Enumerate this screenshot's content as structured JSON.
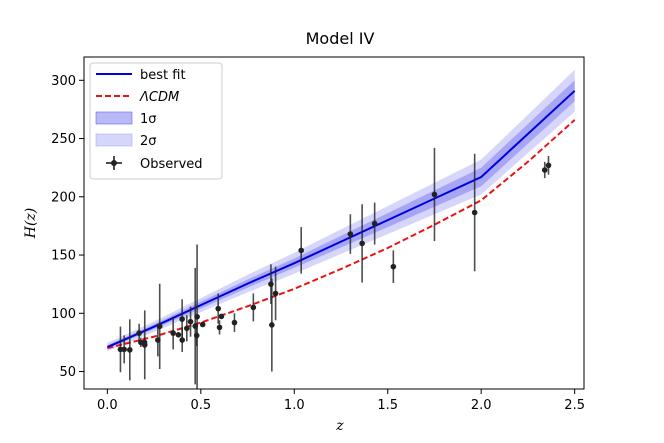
{
  "chart_data": {
    "type": "line",
    "title": "Model IV",
    "xlabel": "z",
    "ylabel": "H(z)",
    "xlim": [
      -0.125,
      2.55
    ],
    "ylim": [
      35,
      320
    ],
    "xticks": [
      0.0,
      0.5,
      1.0,
      1.5,
      2.0,
      2.5
    ],
    "xtick_labels": [
      "0.0",
      "0.5",
      "1.0",
      "1.5",
      "2.0",
      "2.5"
    ],
    "yticks": [
      50,
      100,
      150,
      200,
      250,
      300
    ],
    "ytick_labels": [
      "50",
      "100",
      "150",
      "200",
      "250",
      "300"
    ],
    "legend_position": "top-left",
    "legend": {
      "best_fit": "best fit",
      "lcdm": "ΛCDM",
      "one_sigma": "1σ",
      "two_sigma": "2σ",
      "observed": "Observed"
    },
    "colors": {
      "best_fit": "#0000dd",
      "lcdm": "#ee1111",
      "band_1sigma": "#8080f0",
      "band_2sigma": "#c8c8fa",
      "observed": "#222222"
    },
    "series": [
      {
        "name": "best fit",
        "x": [
          0.0,
          0.25,
          0.5,
          0.75,
          1.0,
          1.25,
          1.5,
          1.75,
          2.0,
          2.25,
          2.5
        ],
        "y": [
          71,
          88.5,
          107,
          125.5,
          143,
          161.5,
          180,
          198.5,
          217,
          254,
          291
        ],
        "sigma1": [
          1.5,
          2,
          3,
          3.5,
          4,
          5,
          6,
          7,
          8,
          8.5,
          9
        ],
        "sigma2": [
          3.5,
          4.5,
          6,
          7.5,
          9,
          10.5,
          12,
          13.5,
          15,
          16.5,
          18
        ]
      },
      {
        "name": "ΛCDM",
        "x": [
          0.0,
          0.25,
          0.5,
          0.75,
          1.0,
          1.25,
          1.5,
          1.75,
          2.0,
          2.25,
          2.5
        ],
        "y": [
          70,
          80,
          92,
          106,
          121,
          138,
          156,
          176,
          197,
          230,
          266
        ]
      }
    ],
    "observed": [
      {
        "z": 0.07,
        "H": 69,
        "err": 19.6
      },
      {
        "z": 0.09,
        "H": 69,
        "err": 12
      },
      {
        "z": 0.12,
        "H": 68.6,
        "err": 26.2
      },
      {
        "z": 0.17,
        "H": 83,
        "err": 8
      },
      {
        "z": 0.179,
        "H": 75,
        "err": 4
      },
      {
        "z": 0.199,
        "H": 75,
        "err": 5
      },
      {
        "z": 0.2,
        "H": 72.9,
        "err": 29.6
      },
      {
        "z": 0.27,
        "H": 77,
        "err": 14
      },
      {
        "z": 0.28,
        "H": 88.8,
        "err": 36.6
      },
      {
        "z": 0.352,
        "H": 83,
        "err": 14
      },
      {
        "z": 0.38,
        "H": 81.5,
        "err": 1.9
      },
      {
        "z": 0.4,
        "H": 95,
        "err": 17
      },
      {
        "z": 0.4004,
        "H": 77,
        "err": 10.2
      },
      {
        "z": 0.425,
        "H": 87.1,
        "err": 11.2
      },
      {
        "z": 0.445,
        "H": 92.8,
        "err": 12.9
      },
      {
        "z": 0.47,
        "H": 89,
        "err": 50
      },
      {
        "z": 0.478,
        "H": 80.9,
        "err": 9
      },
      {
        "z": 0.48,
        "H": 97,
        "err": 62
      },
      {
        "z": 0.51,
        "H": 90.4,
        "err": 1.9
      },
      {
        "z": 0.593,
        "H": 104,
        "err": 13
      },
      {
        "z": 0.6,
        "H": 87.9,
        "err": 6.1
      },
      {
        "z": 0.61,
        "H": 97.3,
        "err": 2.1
      },
      {
        "z": 0.68,
        "H": 92,
        "err": 8
      },
      {
        "z": 0.781,
        "H": 105,
        "err": 12
      },
      {
        "z": 0.875,
        "H": 125,
        "err": 17
      },
      {
        "z": 0.88,
        "H": 90,
        "err": 40
      },
      {
        "z": 0.9,
        "H": 117,
        "err": 23
      },
      {
        "z": 1.037,
        "H": 154,
        "err": 20
      },
      {
        "z": 1.3,
        "H": 168,
        "err": 17
      },
      {
        "z": 1.363,
        "H": 160,
        "err": 33.6
      },
      {
        "z": 1.43,
        "H": 177,
        "err": 18
      },
      {
        "z": 1.53,
        "H": 140,
        "err": 14
      },
      {
        "z": 1.75,
        "H": 202,
        "err": 40
      },
      {
        "z": 1.965,
        "H": 186.5,
        "err": 50.4
      },
      {
        "z": 2.34,
        "H": 223,
        "err": 7
      },
      {
        "z": 2.36,
        "H": 227,
        "err": 8
      }
    ]
  }
}
